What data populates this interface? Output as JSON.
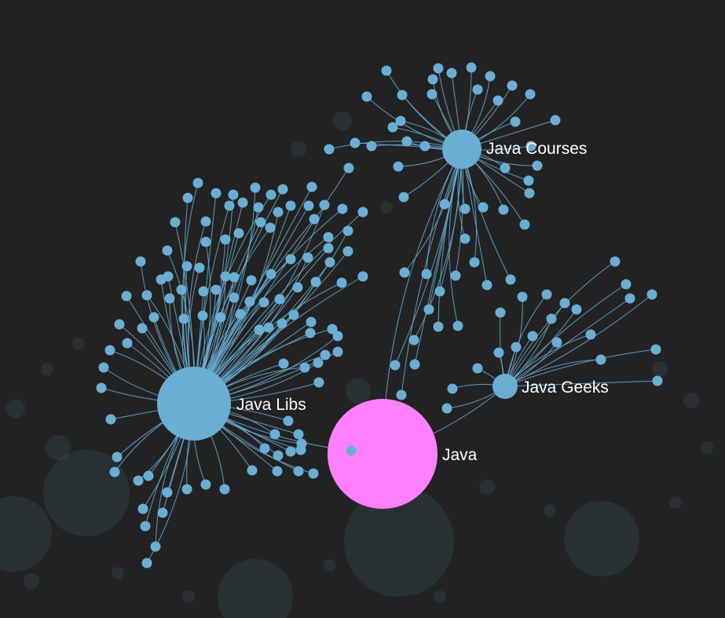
{
  "graph": {
    "colors": {
      "background": "#222222",
      "node": "#6aaed3",
      "root": "#ff80ff",
      "edge": "#6aaed3",
      "label": "#ffffff"
    },
    "root": {
      "id": "java",
      "label": "Java"
    },
    "hubs": [
      {
        "id": "java-libs",
        "label": "Java Libs"
      },
      {
        "id": "java-courses",
        "label": "Java Courses"
      },
      {
        "id": "java-geeks",
        "label": "Java Geeks"
      }
    ]
  }
}
